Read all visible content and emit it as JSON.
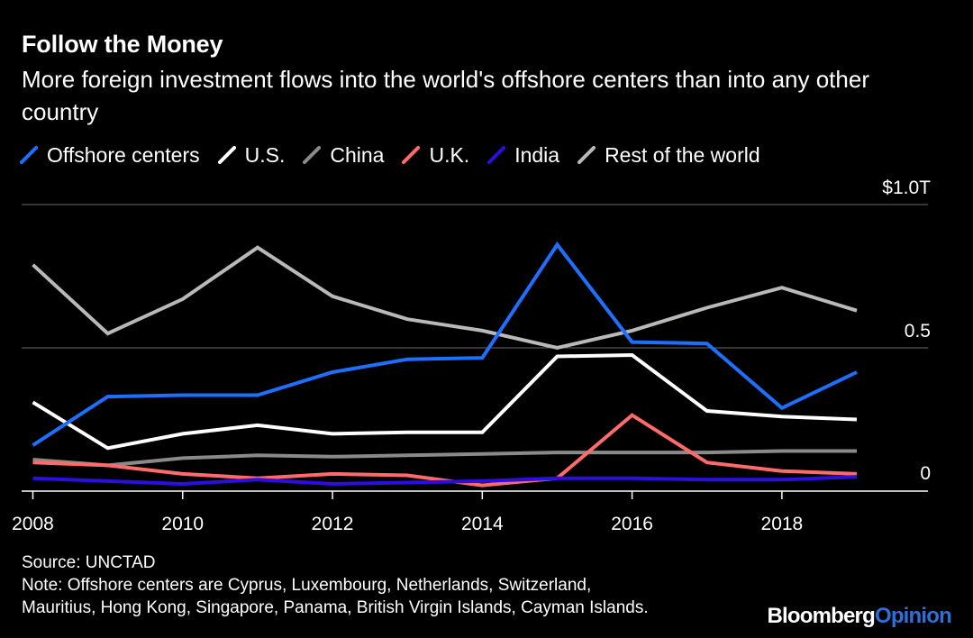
{
  "header": {
    "title": "Follow the Money",
    "subtitle": "More foreign investment flows into the world's offshore centers than into any other country"
  },
  "chart_data": {
    "type": "line",
    "x": [
      2008,
      2009,
      2010,
      2011,
      2012,
      2013,
      2014,
      2015,
      2016,
      2017,
      2018,
      2019
    ],
    "x_ticks": [
      "2008",
      "2010",
      "2012",
      "2014",
      "2016",
      "2018"
    ],
    "x_tick_values": [
      2008,
      2010,
      2012,
      2014,
      2016,
      2018
    ],
    "xlim": [
      2007.85,
      2019.95
    ],
    "ylim": [
      0,
      1.0
    ],
    "y_ticks": [
      {
        "value": 0,
        "label": "0"
      },
      {
        "value": 0.5,
        "label": "0.5"
      },
      {
        "value": 1.0,
        "label": "$1.0T"
      }
    ],
    "grid": true,
    "legend_position": "top-left",
    "series": [
      {
        "name": "Rest of the world",
        "color": "#b9b9b9",
        "values": [
          0.79,
          0.55,
          0.67,
          0.85,
          0.68,
          0.6,
          0.56,
          0.5,
          0.56,
          0.64,
          0.71,
          0.63
        ]
      },
      {
        "name": "China",
        "color": "#8a8a8a",
        "values": [
          0.11,
          0.09,
          0.115,
          0.125,
          0.12,
          0.125,
          0.13,
          0.135,
          0.135,
          0.135,
          0.14,
          0.14
        ]
      },
      {
        "name": "U.S.",
        "color": "#ffffff",
        "values": [
          0.31,
          0.15,
          0.2,
          0.23,
          0.2,
          0.205,
          0.205,
          0.47,
          0.475,
          0.28,
          0.26,
          0.25
        ]
      },
      {
        "name": "U.K.",
        "color": "#ff6b6b",
        "values": [
          0.1,
          0.09,
          0.06,
          0.045,
          0.06,
          0.055,
          0.02,
          0.045,
          0.265,
          0.1,
          0.07,
          0.06
        ]
      },
      {
        "name": "India",
        "color": "#2b0fe0",
        "values": [
          0.045,
          0.035,
          0.025,
          0.04,
          0.025,
          0.03,
          0.035,
          0.045,
          0.045,
          0.04,
          0.04,
          0.05
        ]
      },
      {
        "name": "Offshore centers",
        "color": "#1f6fff",
        "values": [
          0.16,
          0.33,
          0.335,
          0.335,
          0.415,
          0.46,
          0.465,
          0.86,
          0.52,
          0.515,
          0.29,
          0.415
        ]
      }
    ]
  },
  "legend": {
    "items": [
      {
        "label": "Offshore centers",
        "color": "#1f6fff"
      },
      {
        "label": "U.S.",
        "color": "#ffffff"
      },
      {
        "label": "China",
        "color": "#8a8a8a"
      },
      {
        "label": "U.K.",
        "color": "#ff6b6b"
      },
      {
        "label": "India",
        "color": "#2b0fe0"
      },
      {
        "label": "Rest of the world",
        "color": "#b9b9b9"
      }
    ]
  },
  "footer": {
    "source": "Source: UNCTAD",
    "note_line1": "Note: Offshore centers are Cyprus, Luxembourg, Netherlands, Switzerland,",
    "note_line2": "Mauritius, Hong Kong, Singapore, Panama, British Virgin Islands, Cayman Islands."
  },
  "brand": {
    "part1": "Bloomberg",
    "part2": "Opinion"
  }
}
